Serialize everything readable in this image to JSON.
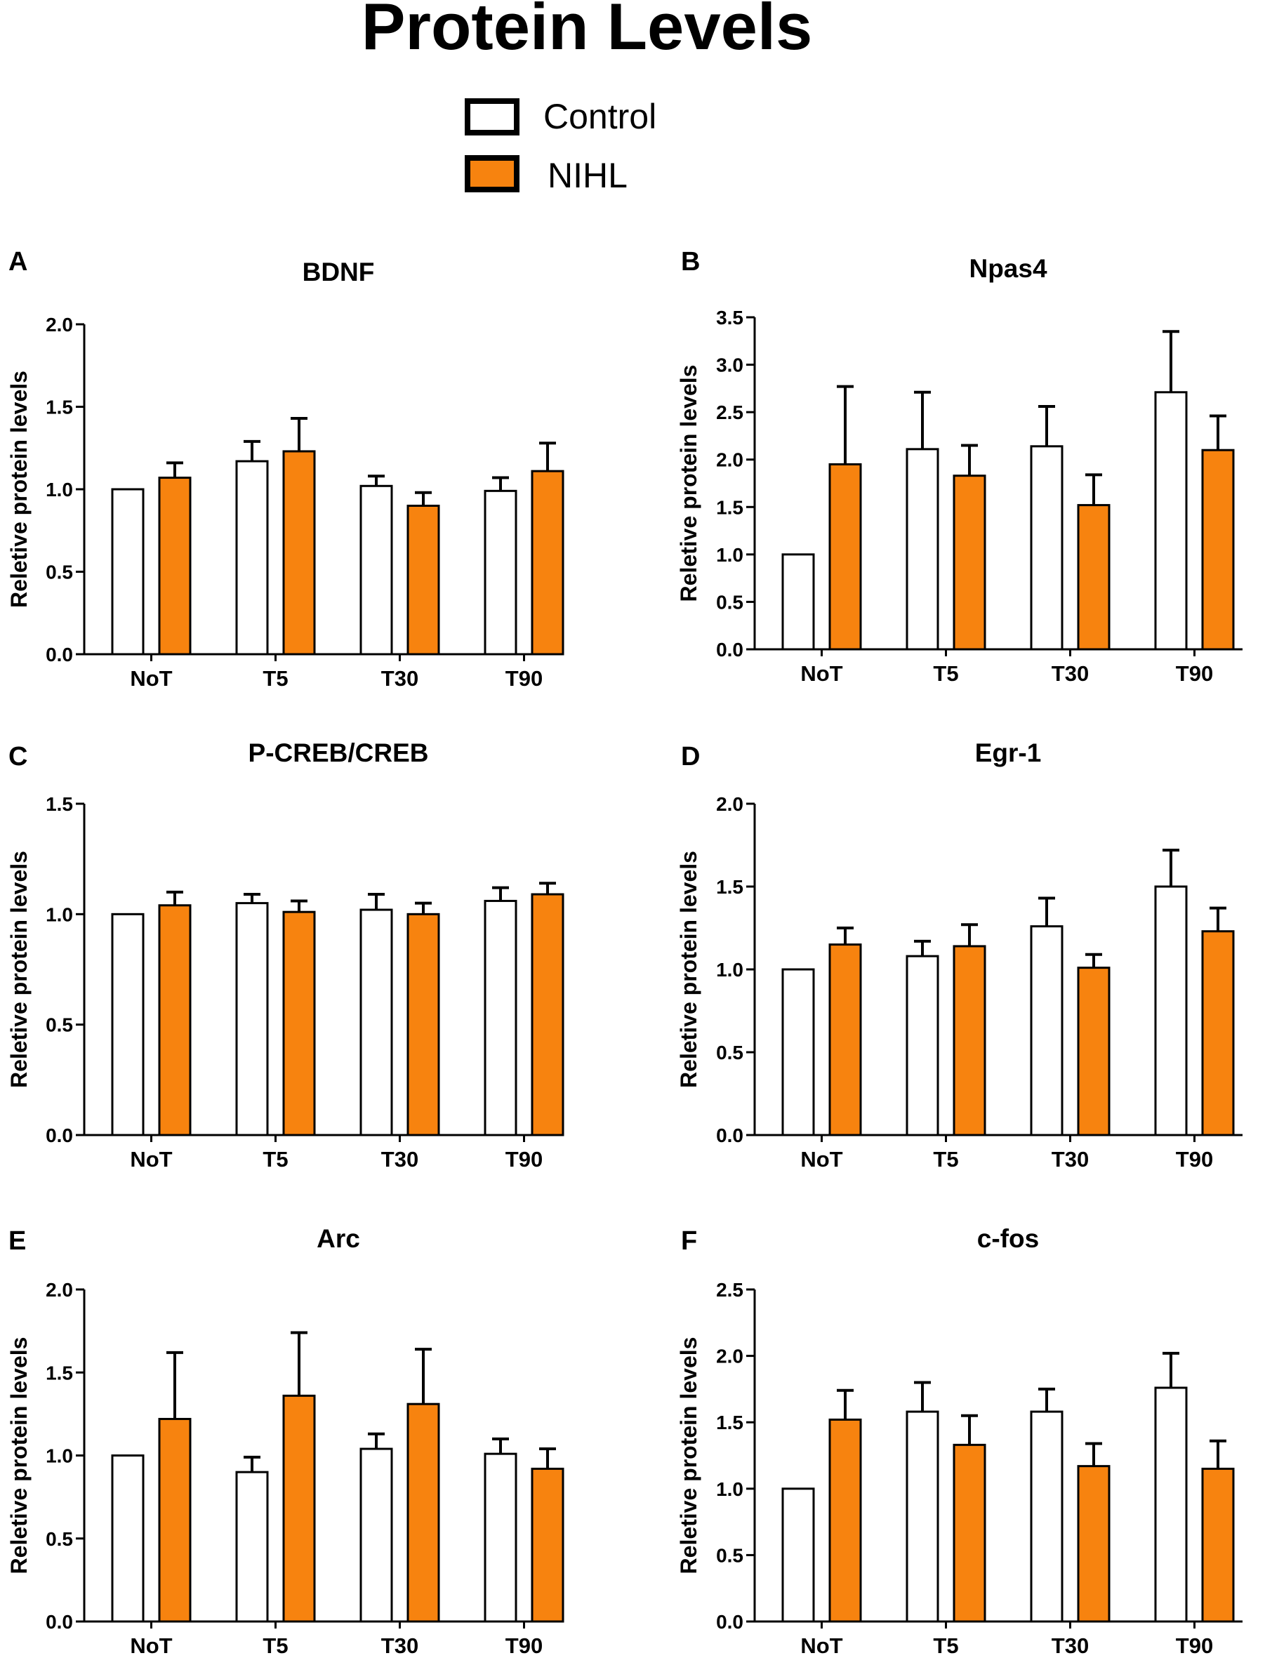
{
  "figure_title": "Protein Levels",
  "colors": {
    "control": "#ffffff",
    "nihl": "#f7830f",
    "stroke": "#000000"
  },
  "legend": [
    {
      "label": "Control",
      "color": "#ffffff"
    },
    {
      "label": "NIHL",
      "color": "#f7830f"
    }
  ],
  "chart_data": [
    {
      "panel": "A",
      "type": "bar",
      "title": "BDNF",
      "ylabel": "Reletive protein levels",
      "xlabel": "",
      "categories": [
        "NoT",
        "T5",
        "T30",
        "T90"
      ],
      "ylim": [
        0,
        2.0
      ],
      "yticks": [
        "0.0",
        "0.5",
        "1.0",
        "1.5",
        "2.0"
      ],
      "series": [
        {
          "name": "Control",
          "values": [
            1.0,
            1.17,
            1.02,
            0.99
          ],
          "error": [
            0.0,
            0.12,
            0.06,
            0.08
          ]
        },
        {
          "name": "NIHL",
          "values": [
            1.07,
            1.23,
            0.9,
            1.11
          ],
          "error": [
            0.09,
            0.2,
            0.08,
            0.17
          ]
        }
      ]
    },
    {
      "panel": "B",
      "type": "bar",
      "title": "Npas4",
      "ylabel": "Reletive protein levels",
      "xlabel": "",
      "categories": [
        "NoT",
        "T5",
        "T30",
        "T90"
      ],
      "ylim": [
        0,
        3.5
      ],
      "yticks": [
        "0.0",
        "0.5",
        "1.0",
        "1.5",
        "2.0",
        "2.5",
        "3.0",
        "3.5"
      ],
      "series": [
        {
          "name": "Control",
          "values": [
            1.0,
            2.11,
            2.14,
            2.71
          ],
          "error": [
            0.0,
            0.6,
            0.42,
            0.64
          ]
        },
        {
          "name": "NIHL",
          "values": [
            1.95,
            1.83,
            1.52,
            2.1
          ],
          "error": [
            0.82,
            0.32,
            0.32,
            0.36
          ]
        }
      ]
    },
    {
      "panel": "C",
      "type": "bar",
      "title": "P-CREB/CREB",
      "ylabel": "Reletive protein levels",
      "xlabel": "",
      "categories": [
        "NoT",
        "T5",
        "T30",
        "T90"
      ],
      "ylim": [
        0,
        1.5
      ],
      "yticks": [
        "0.0",
        "0.5",
        "1.0",
        "1.5"
      ],
      "series": [
        {
          "name": "Control",
          "values": [
            1.0,
            1.05,
            1.02,
            1.06
          ],
          "error": [
            0.0,
            0.04,
            0.07,
            0.06
          ]
        },
        {
          "name": "NIHL",
          "values": [
            1.04,
            1.01,
            1.0,
            1.09
          ],
          "error": [
            0.06,
            0.05,
            0.05,
            0.05
          ]
        }
      ]
    },
    {
      "panel": "D",
      "type": "bar",
      "title": "Egr-1",
      "ylabel": "Reletive protein levels",
      "xlabel": "",
      "categories": [
        "NoT",
        "T5",
        "T30",
        "T90"
      ],
      "ylim": [
        0,
        2.0
      ],
      "yticks": [
        "0.0",
        "0.5",
        "1.0",
        "1.5",
        "2.0"
      ],
      "series": [
        {
          "name": "Control",
          "values": [
            1.0,
            1.08,
            1.26,
            1.5
          ],
          "error": [
            0.0,
            0.09,
            0.17,
            0.22
          ]
        },
        {
          "name": "NIHL",
          "values": [
            1.15,
            1.14,
            1.01,
            1.23
          ],
          "error": [
            0.1,
            0.13,
            0.08,
            0.14
          ]
        }
      ]
    },
    {
      "panel": "E",
      "type": "bar",
      "title": "Arc",
      "ylabel": "Reletive protein levels",
      "xlabel": "",
      "categories": [
        "NoT",
        "T5",
        "T30",
        "T90"
      ],
      "ylim": [
        0,
        2.0
      ],
      "yticks": [
        "0.0",
        "0.5",
        "1.0",
        "1.5",
        "2.0"
      ],
      "series": [
        {
          "name": "Control",
          "values": [
            1.0,
            0.9,
            1.04,
            1.01
          ],
          "error": [
            0.0,
            0.09,
            0.09,
            0.09
          ]
        },
        {
          "name": "NIHL",
          "values": [
            1.22,
            1.36,
            1.31,
            0.92
          ],
          "error": [
            0.4,
            0.38,
            0.33,
            0.12
          ]
        }
      ]
    },
    {
      "panel": "F",
      "type": "bar",
      "title": "c-fos",
      "ylabel": "Reletive protein levels",
      "xlabel": "",
      "categories": [
        "NoT",
        "T5",
        "T30",
        "T90"
      ],
      "ylim": [
        0,
        2.5
      ],
      "yticks": [
        "0.0",
        "0.5",
        "1.0",
        "1.5",
        "2.0",
        "2.5"
      ],
      "series": [
        {
          "name": "Control",
          "values": [
            1.0,
            1.58,
            1.58,
            1.76
          ],
          "error": [
            0.0,
            0.22,
            0.17,
            0.26
          ]
        },
        {
          "name": "NIHL",
          "values": [
            1.52,
            1.33,
            1.17,
            1.15
          ],
          "error": [
            0.22,
            0.22,
            0.17,
            0.21
          ]
        }
      ]
    }
  ]
}
